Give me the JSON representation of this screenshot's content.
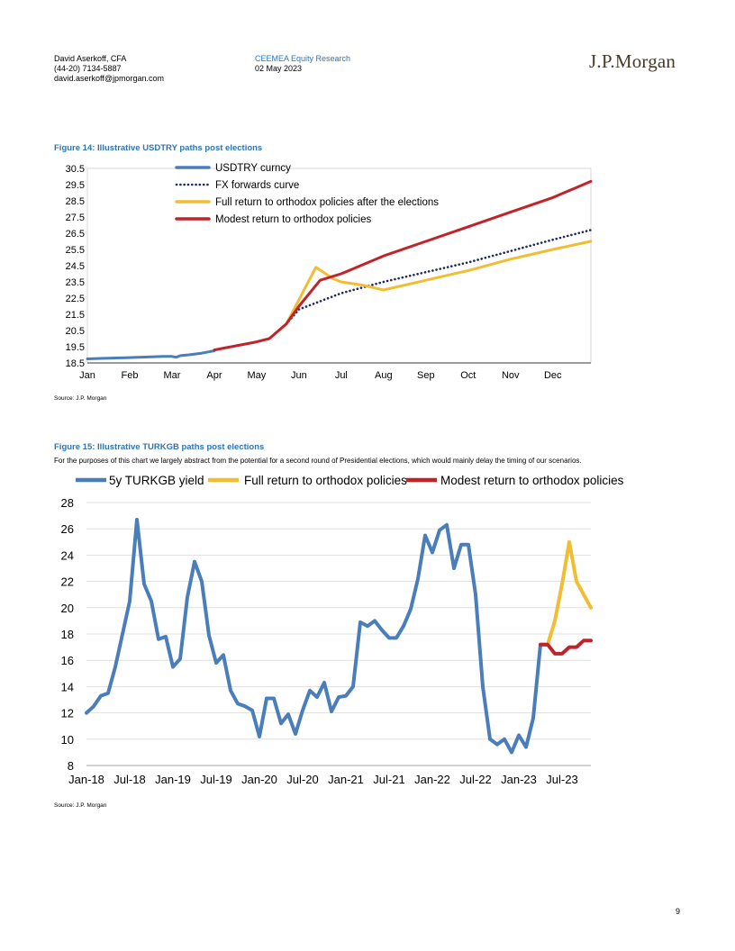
{
  "header": {
    "author": "David Aserkoff, CFA",
    "phone": "(44-20) 7134-5887",
    "email": "david.aserkoff@jpmorgan.com",
    "department": "CEEMEA Equity Research",
    "date": "02 May 2023",
    "logo": "J.P.Morgan"
  },
  "figure14": {
    "title": "Figure 14: Illustrative USDTRY paths post elections",
    "source": "Source: J.P. Morgan"
  },
  "figure15": {
    "title": "Figure 15: Illustrative TURKGB paths post elections",
    "subtitle": "For the purposes of this chart we largely abstract from the potential for a second round of Presidential elections, which would mainly delay the timing of our scenarios.",
    "source": "Source: J.P. Morgan"
  },
  "page_number": "9",
  "colors": {
    "blue": "#4a7ebb",
    "navy": "#1f2a5c",
    "yellow": "#f2bd32",
    "red": "#c0242b",
    "accent": "#2e75b6"
  },
  "chart_data": [
    {
      "type": "line",
      "yticks": [
        "30.5",
        "29.5",
        "28.5",
        "27.5",
        "26.5",
        "25.5",
        "24.5",
        "23.5",
        "22.5",
        "21.5",
        "20.5",
        "19.5",
        "18.5"
      ],
      "ylim": [
        18.5,
        30.5
      ],
      "xticks": [
        "Jan",
        "Feb",
        "Mar",
        "Apr",
        "May",
        "Jun",
        "Jul",
        "Aug",
        "Sep",
        "Oct",
        "Nov",
        "Dec"
      ],
      "legend": [
        "USDTRY curncy",
        "FX forwards curve",
        "Full return to orthodox policies after the elections",
        "Modest return to orthodox policies"
      ],
      "series": [
        {
          "name": "USDTRY curncy",
          "style": "solid",
          "color": "#4a7ebb",
          "x": [
            0,
            0.3,
            0.6,
            0.9,
            1.2,
            1.5,
            1.8,
            2.0,
            2.1,
            2.2,
            2.4,
            2.7,
            3.0
          ],
          "y": [
            18.75,
            18.78,
            18.8,
            18.82,
            18.85,
            18.87,
            18.9,
            18.9,
            18.85,
            18.95,
            19.0,
            19.1,
            19.25
          ]
        },
        {
          "name": "FX forwards curve",
          "style": "dotted",
          "color": "#1f2a5c",
          "x": [
            4.7,
            5.0,
            6.0,
            7.0,
            8.0,
            9.0,
            10.0,
            11.0,
            11.9
          ],
          "y": [
            20.9,
            21.8,
            22.8,
            23.5,
            24.1,
            24.7,
            25.4,
            26.1,
            26.7
          ]
        },
        {
          "name": "Full return to orthodox policies after the elections",
          "style": "solid",
          "color": "#f2bd32",
          "x": [
            4.3,
            4.7,
            5.0,
            5.4,
            5.8,
            6.0,
            6.5,
            7.0,
            8.0,
            9.0,
            10.0,
            11.0,
            11.9
          ],
          "y": [
            20.0,
            20.9,
            22.4,
            24.4,
            23.7,
            23.5,
            23.3,
            23.0,
            23.6,
            24.2,
            24.9,
            25.5,
            26.0
          ]
        },
        {
          "name": "Modest return to orthodox policies",
          "style": "solid",
          "color": "#c0242b",
          "x": [
            3.0,
            3.5,
            4.0,
            4.3,
            4.7,
            5.0,
            5.5,
            6.0,
            7.0,
            8.0,
            9.0,
            10.0,
            11.0,
            11.9
          ],
          "y": [
            19.3,
            19.55,
            19.8,
            20.0,
            20.9,
            22.0,
            23.6,
            24.0,
            25.1,
            26.0,
            26.9,
            27.8,
            28.7,
            29.7
          ]
        }
      ]
    },
    {
      "type": "line",
      "yticks": [
        "28",
        "26",
        "24",
        "22",
        "20",
        "18",
        "16",
        "14",
        "12",
        "10",
        "8"
      ],
      "ylim": [
        8,
        28
      ],
      "xticks": [
        "Jan-18",
        "Jul-18",
        "Jan-19",
        "Jul-19",
        "Jan-20",
        "Jul-20",
        "Jan-21",
        "Jul-21",
        "Jan-22",
        "Jul-22",
        "Jan-23",
        "Jul-23"
      ],
      "legend": [
        "5y TURKGB yield",
        "Full return to orthodox policies",
        "Modest return to orthodox policies"
      ],
      "series": [
        {
          "name": "5y TURKGB yield",
          "color": "#4a7ebb",
          "x": [
            0,
            1,
            2,
            3,
            4,
            5,
            6,
            7,
            8,
            9,
            10,
            11,
            12,
            13,
            14,
            15,
            16,
            17,
            18,
            19,
            20,
            21,
            22,
            23,
            24,
            25,
            26,
            27,
            28,
            29,
            30,
            31,
            32,
            33,
            34,
            35,
            36,
            37,
            38,
            39,
            40,
            41,
            42,
            43,
            44,
            45,
            46,
            47,
            48,
            49,
            50,
            51,
            52,
            53,
            54,
            55,
            56,
            57,
            58,
            59,
            60,
            61,
            62,
            63,
            64
          ],
          "y": [
            12.0,
            12.5,
            13.3,
            13.5,
            15.5,
            18.0,
            20.5,
            26.7,
            21.8,
            20.5,
            17.6,
            17.8,
            15.5,
            16.1,
            20.8,
            23.5,
            22.0,
            17.9,
            15.8,
            16.4,
            13.7,
            12.7,
            12.5,
            12.2,
            10.2,
            13.1,
            13.1,
            11.2,
            11.9,
            10.4,
            12.2,
            13.7,
            13.2,
            14.3,
            12.1,
            13.2,
            13.3,
            14.0,
            18.9,
            18.6,
            19.0,
            18.3,
            17.7,
            17.7,
            18.6,
            19.9,
            22.2,
            25.5,
            24.2,
            25.9,
            26.3,
            23.0,
            24.8,
            24.8,
            21.0,
            14.0,
            10.0,
            9.6,
            10.0,
            9.0,
            10.3,
            9.4,
            11.6,
            17.2,
            17.2
          ]
        },
        {
          "name": "Full return to orthodox policies",
          "color": "#f2bd32",
          "x": [
            64,
            65,
            66,
            67,
            68,
            69,
            70
          ],
          "y": [
            17.2,
            19.0,
            21.8,
            25.0,
            22.0,
            21.0,
            20.0
          ]
        },
        {
          "name": "Modest return to orthodox policies",
          "color": "#c0242b",
          "x": [
            63,
            64,
            65,
            66,
            67,
            68,
            69,
            70
          ],
          "y": [
            17.2,
            17.2,
            16.5,
            16.5,
            17.0,
            17.0,
            17.5,
            17.5
          ]
        }
      ]
    }
  ]
}
